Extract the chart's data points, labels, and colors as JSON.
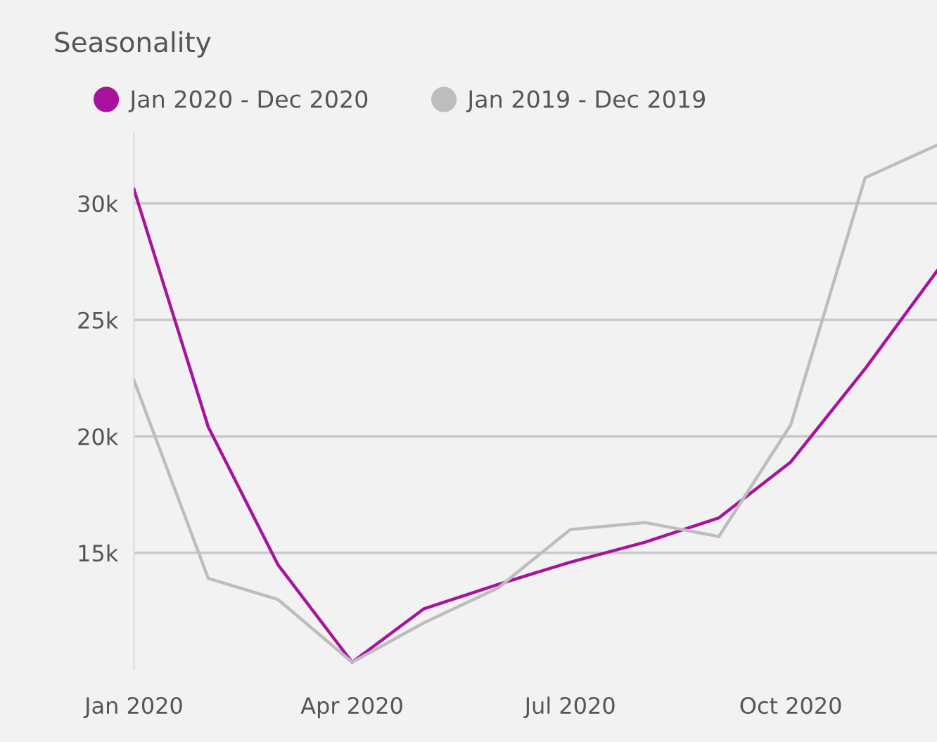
{
  "chart_data": {
    "type": "line",
    "title": "Seasonality",
    "x": [
      "2020-01",
      "2020-02",
      "2020-03",
      "2020-04",
      "2020-05",
      "2020-06",
      "2020-07",
      "2020-08",
      "2020-09",
      "2020-10",
      "2020-11",
      "2020-12"
    ],
    "series": [
      {
        "name": "Jan 2020 - Dec 2020",
        "color": "#a8139e",
        "values": [
          30600,
          20400,
          14500,
          10300,
          12600,
          13650,
          14600,
          15450,
          16500,
          18900,
          22900,
          27100
        ]
      },
      {
        "name": "Jan 2019 - Dec 2019",
        "color": "#bdbdbd",
        "values": [
          22400,
          13900,
          13000,
          10300,
          12000,
          13500,
          16000,
          16300,
          15700,
          20500,
          31100,
          32500
        ]
      }
    ],
    "xlim": [
      "2020-01-01",
      "2020-12-01"
    ],
    "xticks": [
      {
        "value": "2020-01-01",
        "label": "Jan 2020"
      },
      {
        "value": "2020-04-01",
        "label": "Apr 2020"
      },
      {
        "value": "2020-07-01",
        "label": "Jul 2020"
      },
      {
        "value": "2020-10-01",
        "label": "Oct 2020"
      }
    ],
    "ylim": [
      10000,
      33000
    ],
    "yticks": [
      {
        "value": 15000,
        "label": "15k"
      },
      {
        "value": 20000,
        "label": "20k"
      },
      {
        "value": 25000,
        "label": "25k"
      },
      {
        "value": 30000,
        "label": "30k"
      }
    ],
    "grid": "y",
    "legend": "top left",
    "marker": "none",
    "line_style": "solid"
  }
}
